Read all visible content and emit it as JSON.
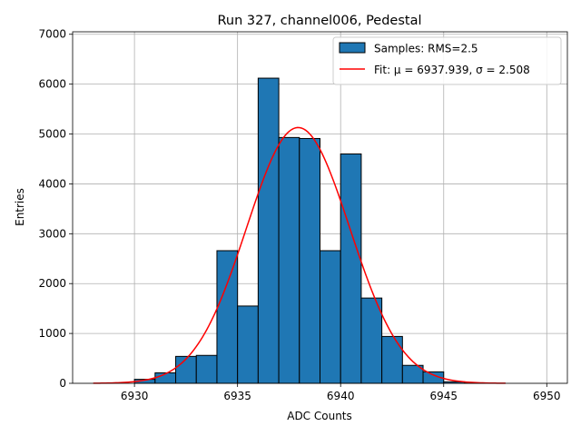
{
  "chart_data": {
    "type": "bar",
    "title": "Run 327, channel006, Pedestal",
    "xlabel": "ADC Counts",
    "ylabel": "Entries",
    "xlim": [
      6927.0,
      6951.0
    ],
    "ylim": [
      0,
      7050
    ],
    "xticks": [
      6930,
      6935,
      6940,
      6945,
      6950
    ],
    "yticks": [
      0,
      1000,
      2000,
      3000,
      4000,
      5000,
      6000,
      7000
    ],
    "grid": true,
    "bin_width": 1,
    "bins": [
      {
        "x": 6930,
        "value": 80
      },
      {
        "x": 6931,
        "value": 210
      },
      {
        "x": 6932,
        "value": 540
      },
      {
        "x": 6933,
        "value": 560
      },
      {
        "x": 6934,
        "value": 2660
      },
      {
        "x": 6935,
        "value": 1550
      },
      {
        "x": 6936,
        "value": 6120
      },
      {
        "x": 6937,
        "value": 4930
      },
      {
        "x": 6938,
        "value": 4910
      },
      {
        "x": 6939,
        "value": 2660
      },
      {
        "x": 6940,
        "value": 4600
      },
      {
        "x": 6941,
        "value": 1710
      },
      {
        "x": 6942,
        "value": 940
      },
      {
        "x": 6943,
        "value": 360
      },
      {
        "x": 6944,
        "value": 230
      },
      {
        "x": 6945,
        "value": 30
      },
      {
        "x": 6946,
        "value": 10
      }
    ],
    "fit": {
      "mu": 6937.939,
      "sigma": 2.508,
      "amplitude": 5130,
      "x_range": [
        6928.0,
        6948.0
      ]
    },
    "legend": {
      "position": "top-right",
      "entries": [
        {
          "label": "Samples: RMS=2.5",
          "kind": "patch"
        },
        {
          "label": "Fit: μ = 6937.939, σ = 2.508",
          "kind": "line"
        }
      ]
    },
    "colors": {
      "bar": "#1f77b4",
      "bar_edge": "#000000",
      "fit": "#ff0000",
      "grid": "#b0b0b0",
      "axis": "#000000"
    }
  }
}
